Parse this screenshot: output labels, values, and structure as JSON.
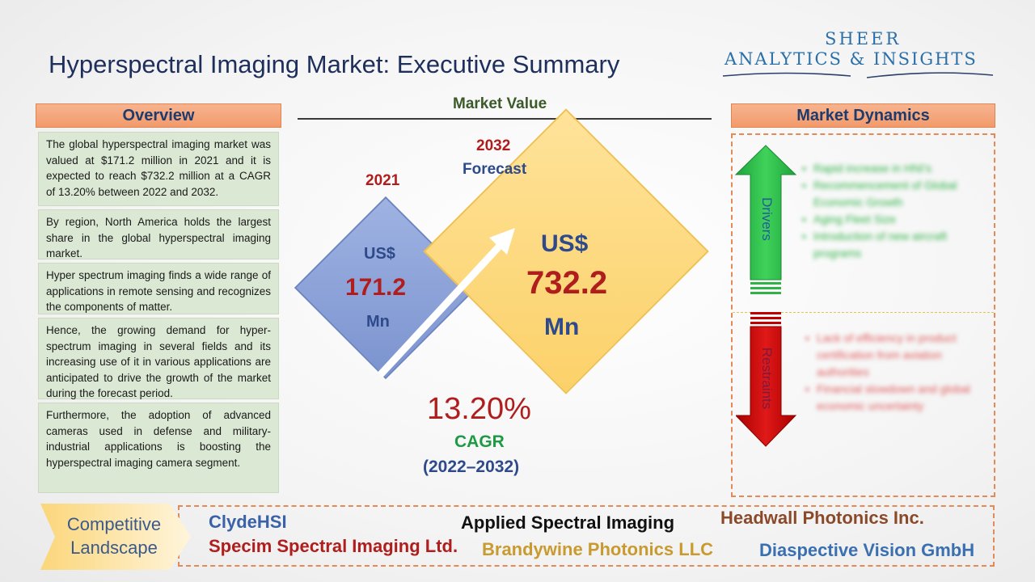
{
  "header": {
    "title": "Hyperspectral Imaging Market: Executive Summary",
    "logo_line1": "SHEER",
    "logo_line2": "ANALYTICS & INSIGHTS"
  },
  "overview": {
    "heading": "Overview",
    "paragraphs": [
      "The global hyperspectral imaging market was valued at $171.2 million in 2021 and it is expected to reach $732.2 million at a CAGR of 13.20% between 2022 and 2032.",
      "By region, North America holds the largest share in the global hyperspectral imaging market.",
      "Hyper spectrum imaging finds a wide range of applications in remote sensing and recognizes the components of matter.",
      "Hence, the growing demand for hyper-spectrum imaging in several fields and its increasing use of it in various applications are anticipated to drive the growth of the market during the forecast period.",
      "Furthermore, the adoption of advanced cameras used in defense and military-industrial applications is boosting the hyperspectral imaging camera segment."
    ]
  },
  "market_value": {
    "heading": "Market Value",
    "base": {
      "year": "2021",
      "currency": "US$",
      "value": "171.2",
      "unit": "Mn"
    },
    "forecast": {
      "year": "2032",
      "label": "Forecast",
      "currency": "US$",
      "value": "732.2",
      "unit": "Mn"
    },
    "cagr": {
      "value": "13.20%",
      "label": "CAGR",
      "range": "(2022–2032)"
    }
  },
  "market_dynamics": {
    "heading": "Market Dynamics",
    "drivers_label": "Drivers",
    "drivers": [
      "Rapid increase in HNI's",
      "Recommencement of Global Economic Growth",
      "Aging Fleet Size",
      "Introduction of new aircraft programs"
    ],
    "restraints_label": "Restraints",
    "restraints": [
      "Lack of efficiency in product certification from aviation authorities",
      "Financial slowdown and global economic uncertainty"
    ]
  },
  "competitive_landscape": {
    "label": "Competitive Landscape",
    "companies": [
      "ClydeHSI",
      "Specim Spectral Imaging Ltd.",
      "Applied Spectral Imaging",
      "Brandywine Photonics LLC",
      "Headwall Photonics Inc.",
      "Diaspective Vision GmbH"
    ]
  },
  "colors": {
    "title": "#1f2f5c",
    "panel_header": "#f29a6b",
    "card_bg": "#dbe8d4",
    "diamond_2021": "#8fa5d8",
    "diamond_2032": "#fbd169",
    "value_red": "#b01d1d",
    "drivers_green": "#2fb347",
    "restraints_red": "#c00000"
  }
}
